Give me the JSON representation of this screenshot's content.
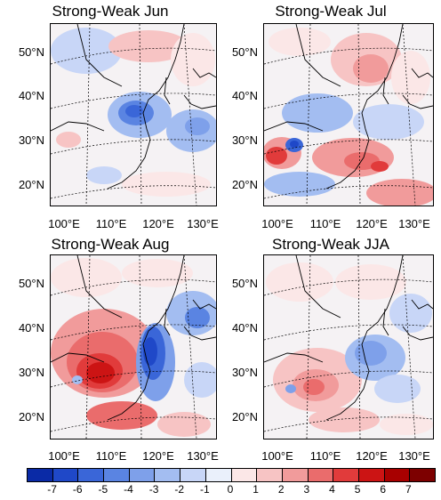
{
  "panels": [
    {
      "title": "Strong-Weak Jun"
    },
    {
      "title": "Strong-Weak Jul"
    },
    {
      "title": "Strong-Weak Aug"
    },
    {
      "title": "Strong-Weak JJA"
    }
  ],
  "lat_labels": [
    "50°N",
    "40°N",
    "30°N",
    "20°N"
  ],
  "lon_labels": [
    "100°E",
    "110°E",
    "120°E",
    "130°E"
  ],
  "colorbar": {
    "labels": [
      "-7",
      "-6",
      "-5",
      "-4",
      "-3",
      "-2",
      "-1",
      "0",
      "1",
      "2",
      "3",
      "4",
      "5",
      "6",
      "7"
    ],
    "colors": [
      "#0a2aa6",
      "#1f48c8",
      "#3a66d8",
      "#5a84e2",
      "#7ea0ea",
      "#a3bdf1",
      "#c8d6f7",
      "#eaf0fb",
      "#fbe7e7",
      "#f7c4c4",
      "#f19b9b",
      "#ea6c6c",
      "#e13b3b",
      "#cc1414",
      "#a80000",
      "#7d0000"
    ]
  }
}
